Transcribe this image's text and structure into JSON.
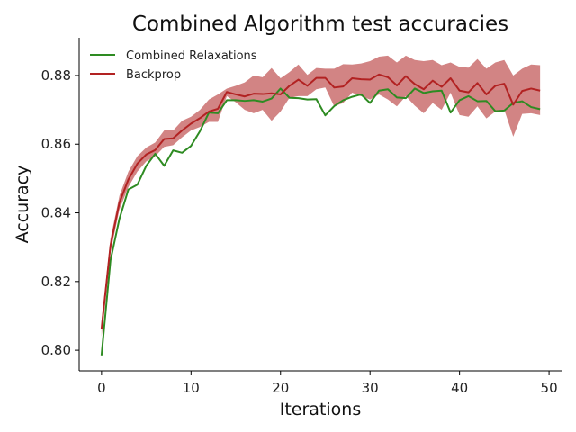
{
  "chart_data": {
    "type": "line",
    "title": "Combined Algorithm test accuracies",
    "xlabel": "Iterations",
    "ylabel": "Accuracy",
    "xlim": [
      -2.5,
      51.5
    ],
    "ylim": [
      0.794,
      0.891
    ],
    "xticks": [
      0,
      10,
      20,
      30,
      40,
      50
    ],
    "yticks": [
      0.8,
      0.82,
      0.84,
      0.86,
      0.88
    ],
    "ytick_labels": [
      "0.80",
      "0.82",
      "0.84",
      "0.86",
      "0.88"
    ],
    "grid": false,
    "legend_position": "top-left",
    "x": [
      0,
      1,
      2,
      3,
      4,
      5,
      6,
      7,
      8,
      9,
      10,
      11,
      12,
      13,
      14,
      15,
      16,
      17,
      18,
      19,
      20,
      21,
      22,
      23,
      24,
      25,
      26,
      27,
      28,
      29,
      30,
      31,
      32,
      33,
      34,
      35,
      36,
      37,
      38,
      39,
      40,
      41,
      42,
      43,
      44,
      45,
      46,
      47,
      48,
      49
    ],
    "series": [
      {
        "name": "Combined Relaxations",
        "color": "#2e8b22",
        "values": [
          0.7985,
          0.8262,
          0.8383,
          0.8468,
          0.8482,
          0.8537,
          0.8572,
          0.8537,
          0.8582,
          0.8575,
          0.8595,
          0.8638,
          0.8692,
          0.869,
          0.8728,
          0.8728,
          0.8726,
          0.8728,
          0.8724,
          0.8733,
          0.8762,
          0.8735,
          0.8734,
          0.873,
          0.8731,
          0.8684,
          0.8711,
          0.8728,
          0.8738,
          0.8745,
          0.872,
          0.8756,
          0.876,
          0.8736,
          0.8734,
          0.8762,
          0.8749,
          0.8754,
          0.8756,
          0.8692,
          0.8728,
          0.874,
          0.8725,
          0.8726,
          0.8696,
          0.8698,
          0.872,
          0.8725,
          0.8708,
          0.8702
        ]
      },
      {
        "name": "Backprop",
        "color": "#b22222",
        "band_color": "#c35b5b",
        "values": [
          0.8062,
          0.8305,
          0.843,
          0.8497,
          0.8543,
          0.857,
          0.8583,
          0.8615,
          0.8617,
          0.864,
          0.866,
          0.8676,
          0.8695,
          0.8703,
          0.8752,
          0.8745,
          0.8739,
          0.8747,
          0.8746,
          0.8748,
          0.8745,
          0.877,
          0.8788,
          0.877,
          0.8793,
          0.8793,
          0.8765,
          0.8768,
          0.8792,
          0.8789,
          0.8788,
          0.8803,
          0.8795,
          0.8771,
          0.8798,
          0.8775,
          0.876,
          0.8785,
          0.8767,
          0.8792,
          0.8756,
          0.8751,
          0.8778,
          0.8745,
          0.877,
          0.8776,
          0.8715,
          0.8755,
          0.8762,
          0.8756
        ],
        "lower": [
          0.804,
          0.8285,
          0.841,
          0.8475,
          0.852,
          0.855,
          0.8565,
          0.8592,
          0.8597,
          0.862,
          0.864,
          0.865,
          0.8665,
          0.8665,
          0.874,
          0.8722,
          0.87,
          0.869,
          0.87,
          0.8668,
          0.8695,
          0.8735,
          0.874,
          0.874,
          0.876,
          0.8765,
          0.871,
          0.872,
          0.875,
          0.874,
          0.873,
          0.8745,
          0.873,
          0.871,
          0.874,
          0.8712,
          0.869,
          0.872,
          0.87,
          0.875,
          0.8685,
          0.868,
          0.871,
          0.8675,
          0.8695,
          0.87,
          0.8622,
          0.8688,
          0.869,
          0.8685
        ],
        "upper": [
          0.8085,
          0.8325,
          0.845,
          0.852,
          0.8565,
          0.859,
          0.8605,
          0.864,
          0.864,
          0.8668,
          0.868,
          0.87,
          0.873,
          0.8745,
          0.8762,
          0.877,
          0.878,
          0.88,
          0.8795,
          0.8822,
          0.8792,
          0.881,
          0.8832,
          0.8802,
          0.8822,
          0.882,
          0.882,
          0.8833,
          0.8832,
          0.8835,
          0.8842,
          0.8855,
          0.8858,
          0.8838,
          0.8858,
          0.8845,
          0.8842,
          0.8845,
          0.883,
          0.8838,
          0.8825,
          0.8823,
          0.8848,
          0.882,
          0.8838,
          0.8845,
          0.88,
          0.882,
          0.8832,
          0.883
        ]
      }
    ]
  }
}
